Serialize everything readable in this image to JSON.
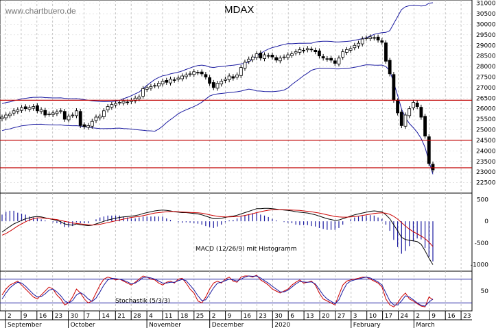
{
  "watermark": "www.chartbuero.de",
  "chart_data": [
    {
      "type": "candlestick",
      "title": "MDAX",
      "ylim": [
        22000,
        31150
      ],
      "y_ticks": [
        22500,
        23000,
        23500,
        24000,
        24500,
        25000,
        25500,
        26000,
        26500,
        27000,
        27500,
        28000,
        28500,
        29000,
        29500,
        30000,
        30500,
        31000
      ],
      "horizontal_lines": [
        26400,
        24500,
        23200
      ],
      "overlay": "Bollinger Bands",
      "close": [
        25600,
        25700,
        25750,
        25900,
        25950,
        26050,
        26000,
        26050,
        26100,
        25900,
        25950,
        25700,
        25750,
        25800,
        25850,
        25900,
        25500,
        25650,
        25700,
        25900,
        25200,
        25150,
        25200,
        25400,
        25600,
        25650,
        25900,
        26100,
        26200,
        26250,
        26300,
        26350,
        26300,
        26400,
        26500,
        26550,
        26950,
        27000,
        27050,
        27100,
        27200,
        27300,
        27250,
        27400,
        27350,
        27450,
        27550,
        27600,
        27650,
        27750,
        27700,
        27650,
        27500,
        27200,
        27000,
        27200,
        27300,
        27400,
        27550,
        27450,
        27600,
        27950,
        28200,
        28350,
        28450,
        28600,
        28400,
        28550,
        28500,
        28450,
        28300,
        28400,
        28450,
        28550,
        28600,
        28700,
        28800,
        28750,
        28850,
        28800,
        28700,
        28500,
        28400,
        28350,
        28300,
        28150,
        28400,
        28700,
        28800,
        28850,
        29000,
        29100,
        29300,
        29350,
        29400,
        29350,
        29250,
        29150,
        28250,
        27650,
        26400,
        25800,
        25200,
        25700,
        26000,
        26300,
        26100,
        25600,
        24700,
        23400,
        23100
      ]
    },
    {
      "type": "line",
      "title": "MACD (12/26/9) mit Histogramm",
      "ylim": [
        -1150,
        650
      ],
      "y_ticks": [
        -1000,
        -500,
        0,
        500
      ],
      "series": [
        {
          "values": [
            -250,
            -180,
            -120,
            -60,
            -20,
            20,
            60,
            80,
            100,
            110,
            100,
            80,
            60,
            40,
            20,
            -10,
            -60,
            -80,
            -90,
            -60,
            -80,
            -90,
            -100,
            -90,
            -60,
            -30,
            0,
            30,
            50,
            70,
            90,
            100,
            110,
            120,
            130,
            150,
            180,
            200,
            220,
            240,
            250,
            260,
            250,
            240,
            220,
            210,
            200,
            200,
            190,
            180,
            170,
            150,
            120,
            90,
            60,
            60,
            70,
            90,
            110,
            120,
            140,
            170,
            200,
            230,
            260,
            290,
            290,
            300,
            300,
            290,
            280,
            270,
            260,
            250,
            240,
            220,
            210,
            200,
            190,
            170,
            150,
            120,
            90,
            60,
            40,
            20,
            30,
            60,
            90,
            120,
            150,
            170,
            190,
            210,
            230,
            240,
            230,
            220,
            150,
            60,
            -80,
            -220,
            -370,
            -420,
            -440,
            -450,
            -470,
            -530,
            -680,
            -850,
            -1000
          ]
        },
        {
          "values": [
            -320,
            -280,
            -230,
            -170,
            -110,
            -60,
            -10,
            30,
            60,
            80,
            80,
            70,
            60,
            50,
            40,
            20,
            0,
            -20,
            -40,
            -50,
            -60,
            -70,
            -80,
            -85,
            -80,
            -70,
            -50,
            -30,
            -10,
            10,
            30,
            50,
            70,
            90,
            100,
            110,
            130,
            150,
            170,
            190,
            200,
            210,
            220,
            225,
            225,
            220,
            215,
            210,
            205,
            200,
            195,
            185,
            170,
            150,
            130,
            115,
            105,
            100,
            100,
            105,
            110,
            120,
            135,
            155,
            175,
            200,
            220,
            240,
            255,
            265,
            270,
            270,
            268,
            265,
            260,
            255,
            250,
            240,
            230,
            220,
            205,
            190,
            170,
            150,
            130,
            110,
            100,
            95,
            95,
            100,
            110,
            120,
            135,
            150,
            165,
            180,
            190,
            195,
            185,
            160,
            115,
            50,
            -30,
            -110,
            -180,
            -240,
            -290,
            -340,
            -400,
            -480,
            -580
          ]
        }
      ]
    },
    {
      "type": "line",
      "title": "Stochastik (5/3/3)",
      "ylim": [
        0,
        100
      ],
      "y_ticks": [
        50
      ],
      "horizontal_lines": [
        80,
        20
      ],
      "x_tick_labels": [
        "2",
        "9",
        "16",
        "23",
        "30",
        "7",
        "14",
        "21",
        "28",
        "4",
        "11",
        "18",
        "25",
        "2",
        "9",
        "16",
        "23",
        "30",
        "6",
        "13",
        "20",
        "27",
        "3",
        "10",
        "17",
        "24",
        "2",
        "9",
        "16",
        "23"
      ],
      "month_labels": [
        "September",
        "October",
        "November",
        "December",
        "2020",
        "February",
        "March"
      ],
      "series": [
        {
          "values": [
            40,
            55,
            65,
            70,
            75,
            65,
            55,
            45,
            35,
            30,
            40,
            50,
            60,
            55,
            40,
            30,
            15,
            20,
            35,
            55,
            45,
            30,
            20,
            25,
            45,
            65,
            80,
            85,
            82,
            78,
            80,
            75,
            70,
            65,
            72,
            80,
            88,
            85,
            80,
            78,
            70,
            65,
            72,
            75,
            70,
            80,
            82,
            70,
            55,
            45,
            25,
            20,
            35,
            55,
            70,
            75,
            70,
            80,
            85,
            75,
            72,
            85,
            88,
            88,
            85,
            90,
            78,
            72,
            65,
            55,
            50,
            45,
            50,
            55,
            65,
            72,
            78,
            70,
            72,
            75,
            65,
            45,
            30,
            25,
            20,
            15,
            40,
            65,
            75,
            78,
            80,
            82,
            85,
            85,
            80,
            75,
            70,
            60,
            30,
            15,
            10,
            20,
            35,
            45,
            30,
            25,
            18,
            12,
            10,
            35,
            28
          ]
        },
        {
          "values": [
            30,
            45,
            58,
            66,
            72,
            70,
            62,
            52,
            42,
            35,
            36,
            43,
            52,
            55,
            48,
            38,
            25,
            20,
            26,
            40,
            46,
            40,
            30,
            24,
            32,
            48,
            65,
            78,
            82,
            81,
            80,
            77,
            73,
            68,
            70,
            76,
            84,
            85,
            83,
            80,
            75,
            70,
            70,
            72,
            72,
            76,
            79,
            76,
            65,
            53,
            38,
            26,
            28,
            42,
            58,
            70,
            72,
            76,
            80,
            78,
            75,
            80,
            85,
            88,
            87,
            88,
            83,
            76,
            70,
            62,
            55,
            48,
            48,
            52,
            60,
            68,
            74,
            73,
            72,
            73,
            68,
            54,
            40,
            30,
            24,
            18,
            28,
            50,
            68,
            75,
            78,
            80,
            83,
            85,
            83,
            78,
            73,
            65,
            45,
            25,
            15,
            15,
            25,
            38,
            35,
            28,
            20,
            14,
            12,
            22,
            30
          ]
        }
      ]
    }
  ]
}
